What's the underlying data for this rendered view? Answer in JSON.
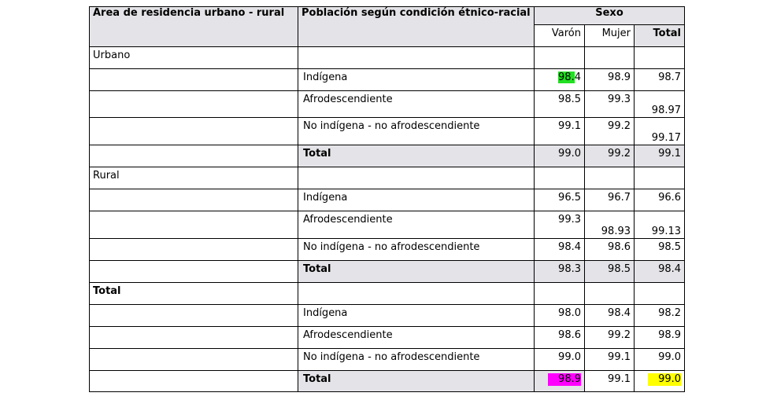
{
  "header": {
    "area_label": "Área de residencia urbano - rural",
    "population_label": "Población según condición étnico-racial",
    "sexo_label": "Sexo",
    "varon_label": "Varón",
    "mujer_label": "Mujer",
    "total_label": "Total"
  },
  "groups": [
    {
      "name": "Urbano",
      "rows": [
        {
          "label": "Indígena",
          "varon": "98.4",
          "mujer": "98.9",
          "total": "98.7"
        },
        {
          "label": "Afrodescendiente",
          "varon": "98.5",
          "mujer": "99.3",
          "total": "98.97"
        },
        {
          "label": "No indígena - no afrodescendiente",
          "varon": "99.1",
          "mujer": "99.2",
          "total": "99.17"
        },
        {
          "label": "Total",
          "varon": "99.0",
          "mujer": "99.2",
          "total": "99.1"
        }
      ]
    },
    {
      "name": "Rural",
      "rows": [
        {
          "label": "Indígena",
          "varon": "96.5",
          "mujer": "96.7",
          "total": "96.6"
        },
        {
          "label": "Afrodescendiente",
          "varon": "99.3",
          "mujer": "98.93",
          "total": "99.13"
        },
        {
          "label": "No indígena - no afrodescendiente",
          "varon": "98.4",
          "mujer": "98.6",
          "total": "98.5"
        },
        {
          "label": "Total",
          "varon": "98.3",
          "mujer": "98.5",
          "total": "98.4"
        }
      ]
    },
    {
      "name": "Total",
      "rows": [
        {
          "label": "Indígena",
          "varon": "98.0",
          "mujer": "98.4",
          "total": "98.2"
        },
        {
          "label": "Afrodescendiente",
          "varon": "98.6",
          "mujer": "99.2",
          "total": "98.9"
        },
        {
          "label": "No indígena - no afrodescendiente",
          "varon": "99.0",
          "mujer": "99.1",
          "total": "99.0"
        },
        {
          "label": "Total",
          "varon": "98.9",
          "mujer": "99.1",
          "total": "99.0"
        }
      ]
    }
  ],
  "highlights": {
    "green": "#22e022",
    "magenta": "#ff00ff",
    "yellow": "#ffff00",
    "header_shade": "#e4e4e8"
  },
  "split_text": {
    "urbano_indigena_varon_hl": "98.",
    "urbano_indigena_varon_rest": "4"
  }
}
